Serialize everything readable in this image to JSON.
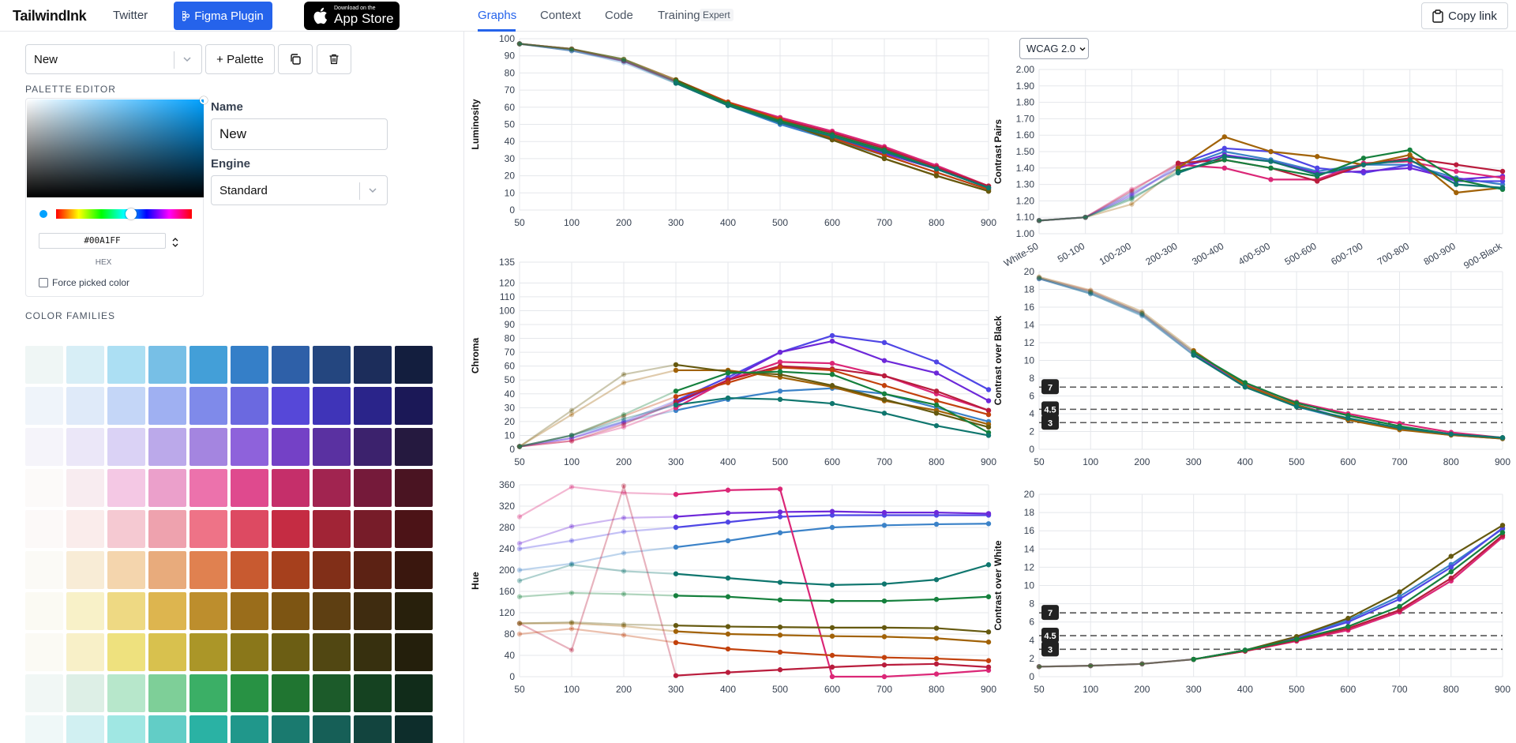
{
  "topbar": {
    "brand": "TailwindInk",
    "twitter": "Twitter",
    "figma": "Figma Plugin",
    "appstore_line1": "Download on the",
    "appstore_line2": "App Store"
  },
  "left": {
    "palette_select": "New",
    "add_palette": "+ Palette",
    "palette_editor_title": "PALETTE EDITOR",
    "hex_value": "#00A1FF",
    "hex_label": "HEX",
    "force_label": "Force picked color",
    "name_label": "Name",
    "name_value": "New",
    "engine_label": "Engine",
    "engine_value": "Standard",
    "color_families_title": "COLOR FAMILIES"
  },
  "tabs": {
    "items": [
      "Graphs",
      "Context",
      "Code",
      "Training"
    ],
    "badge": "Expert",
    "active": "Graphs",
    "copy_link": "Copy link"
  },
  "wcag": {
    "selected": "WCAG 2.0"
  },
  "icons": {
    "figma": "figma-icon",
    "apple": "apple-logo-icon",
    "duplicate": "duplicate-icon",
    "trash": "trash-icon",
    "chevron": "chevron-down-icon",
    "clipboard": "clipboard-icon",
    "updown": "up-down-chevron-icon"
  },
  "swatches": [
    [
      "#eff6f5",
      "#d7eef6",
      "#acdff3",
      "#77bfe6",
      "#439fd8",
      "#357fc8",
      "#2e60a8",
      "#24467f",
      "#1c2d5b",
      "#131e3e"
    ],
    [
      "#eff4fa",
      "#dfeaf9",
      "#c4d6f7",
      "#9fb0f2",
      "#7f8aea",
      "#6b69e0",
      "#5648d8",
      "#3f34b8",
      "#2a248a",
      "#1b1857"
    ],
    [
      "#f5f4fa",
      "#ebe7f8",
      "#dad2f5",
      "#bba9ea",
      "#a485e0",
      "#8e62db",
      "#7441c6",
      "#5a31a1",
      "#3c226d",
      "#25193f"
    ],
    [
      "#fcfaf9",
      "#f8ecf0",
      "#f4c8e4",
      "#eba0cb",
      "#ec72ac",
      "#df4a8e",
      "#c52f6a",
      "#a12450",
      "#751a3a",
      "#4a1422"
    ],
    [
      "#fcf9f8",
      "#faeceb",
      "#f5c9d2",
      "#eea2ae",
      "#ee7387",
      "#dd4a62",
      "#c52c43",
      "#a12436",
      "#771c29",
      "#4c1317"
    ],
    [
      "#fbfaf6",
      "#f8ecd6",
      "#f4d5ad",
      "#e8ab7c",
      "#e08150",
      "#c85a30",
      "#a6401d",
      "#812f18",
      "#5c2214",
      "#3a170e"
    ],
    [
      "#fbfaf3",
      "#f8f1c8",
      "#eed983",
      "#ddb54f",
      "#bd8e2d",
      "#9a6d1b",
      "#7d5513",
      "#5e3f12",
      "#3f2c10",
      "#28200c"
    ],
    [
      "#fbfaf4",
      "#f8f0c8",
      "#eee17e",
      "#d8c14e",
      "#ab9628",
      "#8a771a",
      "#6c5e14",
      "#514712",
      "#37300f",
      "#241f0c"
    ],
    [
      "#f1f7f5",
      "#ddefe6",
      "#b7e7cb",
      "#7ecf98",
      "#3baf66",
      "#289244",
      "#207531",
      "#1c5b2a",
      "#154221",
      "#112c1a"
    ],
    [
      "#eff8f8",
      "#d1f0f2",
      "#a0e7e3",
      "#62cdc6",
      "#2ab2a4",
      "#20978b",
      "#1a7a6f",
      "#165f57",
      "#12443e",
      "#0d2d2b"
    ]
  ],
  "chart_data": [
    {
      "type": "line",
      "name": "Luminosity",
      "ylabel": "Luminosity",
      "x": [
        "50",
        "100",
        "200",
        "300",
        "400",
        "500",
        "600",
        "700",
        "800",
        "900"
      ],
      "ylim": [
        0,
        100
      ],
      "yticks": [
        0,
        10,
        20,
        30,
        40,
        50,
        60,
        70,
        80,
        90,
        100
      ],
      "series": [
        {
          "color": "#3b82c8",
          "values": [
            97,
            93,
            86,
            74,
            61,
            50,
            41,
            32,
            22,
            12
          ]
        },
        {
          "color": "#4f46e5",
          "values": [
            97,
            93,
            87,
            75,
            62,
            51,
            42,
            33,
            24,
            13
          ]
        },
        {
          "color": "#6d28d9",
          "values": [
            97,
            94,
            87,
            75,
            62,
            51,
            42,
            33,
            24,
            13
          ]
        },
        {
          "color": "#db2777",
          "values": [
            97,
            94,
            87,
            75,
            63,
            54,
            46,
            37,
            26,
            14
          ]
        },
        {
          "color": "#b91c3c",
          "values": [
            97,
            94,
            87,
            75,
            63,
            53,
            45,
            36,
            25,
            14
          ]
        },
        {
          "color": "#c2410c",
          "values": [
            97,
            94,
            88,
            76,
            63,
            53,
            42,
            32,
            22,
            12
          ]
        },
        {
          "color": "#a16207",
          "values": [
            97,
            94,
            88,
            76,
            62,
            52,
            41,
            30,
            20,
            11
          ]
        },
        {
          "color": "#65590f",
          "values": [
            97,
            94,
            88,
            76,
            62,
            52,
            41,
            30,
            20,
            11
          ]
        },
        {
          "color": "#15803d",
          "values": [
            97,
            94,
            88,
            75,
            62,
            52,
            44,
            35,
            24,
            13
          ]
        },
        {
          "color": "#0f766e",
          "values": [
            97,
            93,
            87,
            74,
            61,
            51,
            43,
            34,
            24,
            13
          ]
        }
      ]
    },
    {
      "type": "line",
      "name": "Chroma",
      "ylabel": "Chroma",
      "x": [
        "50",
        "100",
        "200",
        "300",
        "400",
        "500",
        "600",
        "700",
        "800",
        "900"
      ],
      "ylim": [
        0,
        135
      ],
      "yticks": [
        0,
        10,
        20,
        30,
        40,
        50,
        60,
        70,
        80,
        90,
        100,
        110,
        120,
        135
      ],
      "series": [
        {
          "color": "#3b82c8",
          "values": [
            2,
            10,
            20,
            28,
            36,
            42,
            44,
            40,
            30,
            20
          ]
        },
        {
          "color": "#4f46e5",
          "values": [
            2,
            8,
            20,
            35,
            52,
            70,
            82,
            77,
            63,
            43
          ]
        },
        {
          "color": "#6d28d9",
          "values": [
            2,
            8,
            19,
            33,
            50,
            70,
            78,
            64,
            55,
            35
          ]
        },
        {
          "color": "#db2777",
          "values": [
            2,
            6,
            16,
            30,
            50,
            63,
            62,
            53,
            40,
            28
          ]
        },
        {
          "color": "#b91c3c",
          "values": [
            2,
            6,
            18,
            34,
            50,
            60,
            58,
            53,
            42,
            28
          ]
        },
        {
          "color": "#c2410c",
          "values": [
            2,
            10,
            24,
            38,
            48,
            59,
            57,
            46,
            35,
            25
          ]
        },
        {
          "color": "#a16207",
          "values": [
            2,
            25,
            48,
            57,
            57,
            52,
            45,
            35,
            28,
            18
          ]
        },
        {
          "color": "#65590f",
          "values": [
            2,
            28,
            54,
            61,
            56,
            54,
            46,
            36,
            26,
            16
          ]
        },
        {
          "color": "#15803d",
          "values": [
            2,
            10,
            25,
            42,
            55,
            56,
            54,
            40,
            32,
            12
          ]
        },
        {
          "color": "#0f766e",
          "values": [
            2,
            10,
            22,
            32,
            37,
            36,
            33,
            26,
            17,
            10
          ]
        }
      ]
    },
    {
      "type": "line",
      "name": "Hue",
      "ylabel": "Hue",
      "x": [
        "50",
        "100",
        "200",
        "300",
        "400",
        "500",
        "600",
        "700",
        "800",
        "900"
      ],
      "ylim": [
        0,
        360
      ],
      "yticks": [
        0,
        40,
        80,
        120,
        160,
        200,
        240,
        280,
        320,
        360
      ],
      "series": [
        {
          "color": "#3b82c8",
          "values": [
            200,
            212,
            232,
            243,
            255,
            270,
            280,
            284,
            286,
            287
          ]
        },
        {
          "color": "#4f46e5",
          "values": [
            240,
            255,
            272,
            280,
            290,
            300,
            303,
            303,
            303,
            303
          ]
        },
        {
          "color": "#6d28d9",
          "values": [
            250,
            282,
            298,
            300,
            307,
            309,
            310,
            308,
            308,
            306
          ]
        },
        {
          "color": "#db2777",
          "values": [
            300,
            356,
            345,
            342,
            350,
            352,
            0,
            0,
            5,
            12
          ]
        },
        {
          "color": "#b91c3c",
          "values": [
            100,
            50,
            358,
            2,
            8,
            13,
            18,
            22,
            24,
            18
          ]
        },
        {
          "color": "#c2410c",
          "values": [
            80,
            90,
            78,
            64,
            52,
            46,
            40,
            36,
            34,
            30
          ]
        },
        {
          "color": "#a16207",
          "values": [
            100,
            100,
            95,
            85,
            80,
            78,
            76,
            75,
            72,
            65
          ]
        },
        {
          "color": "#65590f",
          "values": [
            100,
            102,
            98,
            96,
            94,
            93,
            92,
            92,
            91,
            84
          ]
        },
        {
          "color": "#15803d",
          "values": [
            150,
            157,
            155,
            152,
            150,
            144,
            142,
            142,
            145,
            150
          ]
        },
        {
          "color": "#0f766e",
          "values": [
            180,
            210,
            198,
            193,
            185,
            177,
            172,
            174,
            182,
            210
          ]
        }
      ]
    },
    {
      "type": "line",
      "name": "Contrast Pairs",
      "ylabel": "Contrast Pairs",
      "x": [
        "White-50",
        "50-100",
        "100-200",
        "200-300",
        "300-400",
        "400-500",
        "500-600",
        "600-700",
        "700-800",
        "800-900",
        "900-Black"
      ],
      "ylim": [
        1.0,
        2.0
      ],
      "yticks": [
        "1.00",
        "1.10",
        "1.20",
        "1.30",
        "1.40",
        "1.50",
        "1.60",
        "1.70",
        "1.80",
        "1.90",
        "2.00"
      ],
      "series": [
        {
          "color": "#3b82c8",
          "values": [
            1.08,
            1.1,
            1.25,
            1.4,
            1.5,
            1.45,
            1.38,
            1.42,
            1.42,
            1.34,
            1.3
          ]
        },
        {
          "color": "#4f46e5",
          "values": [
            1.08,
            1.1,
            1.23,
            1.42,
            1.52,
            1.5,
            1.4,
            1.37,
            1.42,
            1.32,
            1.32
          ]
        },
        {
          "color": "#6d28d9",
          "values": [
            1.08,
            1.1,
            1.24,
            1.4,
            1.48,
            1.44,
            1.37,
            1.38,
            1.4,
            1.33,
            1.35
          ]
        },
        {
          "color": "#db2777",
          "values": [
            1.08,
            1.1,
            1.27,
            1.42,
            1.4,
            1.33,
            1.33,
            1.43,
            1.44,
            1.38,
            1.34
          ]
        },
        {
          "color": "#b91c3c",
          "values": [
            1.08,
            1.1,
            1.26,
            1.43,
            1.45,
            1.4,
            1.32,
            1.42,
            1.46,
            1.42,
            1.38
          ]
        },
        {
          "color": "#a16207",
          "values": [
            1.08,
            1.1,
            1.18,
            1.4,
            1.59,
            1.5,
            1.47,
            1.42,
            1.48,
            1.25,
            1.28
          ]
        },
        {
          "color": "#15803d",
          "values": [
            1.08,
            1.1,
            1.21,
            1.38,
            1.45,
            1.4,
            1.35,
            1.46,
            1.51,
            1.33,
            1.27
          ]
        },
        {
          "color": "#0f766e",
          "values": [
            1.08,
            1.1,
            1.22,
            1.37,
            1.47,
            1.44,
            1.36,
            1.42,
            1.45,
            1.3,
            1.28
          ]
        }
      ]
    },
    {
      "type": "line",
      "name": "Contrast over Black",
      "ylabel": "Contrast over Black",
      "x": [
        "50",
        "100",
        "200",
        "300",
        "400",
        "500",
        "600",
        "700",
        "800",
        "900"
      ],
      "ylim": [
        0,
        20
      ],
      "yticks": [
        0,
        2,
        4,
        6,
        8,
        10,
        12,
        14,
        16,
        18,
        20
      ],
      "thresholds": [
        "7",
        "4.5",
        "3"
      ],
      "threshold_values": [
        7,
        4.5,
        3
      ],
      "series": [
        {
          "color": "#3b82c8",
          "values": [
            19.2,
            17.5,
            15.0,
            10.6,
            7.1,
            4.8,
            3.3,
            2.3,
            1.6,
            1.2
          ]
        },
        {
          "color": "#4f46e5",
          "values": [
            19.2,
            17.6,
            15.2,
            10.7,
            7.2,
            5.0,
            3.4,
            2.4,
            1.7,
            1.3
          ]
        },
        {
          "color": "#db2777",
          "values": [
            19.3,
            17.8,
            15.3,
            10.9,
            7.3,
            5.3,
            4.0,
            2.9,
            1.9,
            1.3
          ]
        },
        {
          "color": "#a16207",
          "values": [
            19.4,
            17.9,
            15.5,
            11.1,
            7.2,
            5.0,
            3.3,
            2.2,
            1.6,
            1.2
          ]
        },
        {
          "color": "#15803d",
          "values": [
            19.3,
            17.7,
            15.3,
            10.9,
            7.5,
            5.2,
            3.8,
            2.6,
            1.7,
            1.3
          ]
        },
        {
          "color": "#0f766e",
          "values": [
            19.2,
            17.5,
            15.1,
            10.6,
            7.0,
            4.8,
            3.5,
            2.4,
            1.7,
            1.3
          ]
        }
      ]
    },
    {
      "type": "line",
      "name": "Contrast over White",
      "ylabel": "Contrast over White",
      "x": [
        "50",
        "100",
        "200",
        "300",
        "400",
        "500",
        "600",
        "700",
        "800",
        "900"
      ],
      "ylim": [
        0,
        20
      ],
      "yticks": [
        0,
        2,
        4,
        6,
        8,
        10,
        12,
        14,
        16,
        18,
        20
      ],
      "thresholds": [
        "7",
        "4.5",
        "3"
      ],
      "threshold_values": [
        7,
        4.5,
        3
      ],
      "series": [
        {
          "color": "#3b82c8",
          "values": [
            1.1,
            1.2,
            1.4,
            1.9,
            2.9,
            4.3,
            6.2,
            8.8,
            12.3,
            16.2
          ]
        },
        {
          "color": "#4f46e5",
          "values": [
            1.1,
            1.2,
            1.4,
            1.9,
            2.9,
            4.2,
            6.0,
            8.5,
            12.0,
            16.3
          ]
        },
        {
          "color": "#db2777",
          "values": [
            1.1,
            1.2,
            1.4,
            1.9,
            2.8,
            3.9,
            5.1,
            7.1,
            10.5,
            15.3
          ]
        },
        {
          "color": "#b91c3c",
          "values": [
            1.1,
            1.2,
            1.4,
            1.9,
            2.8,
            4.0,
            5.3,
            7.3,
            10.8,
            15.5
          ]
        },
        {
          "color": "#65590f",
          "values": [
            1.1,
            1.2,
            1.4,
            1.9,
            2.9,
            4.4,
            6.4,
            9.3,
            13.2,
            16.6
          ]
        },
        {
          "color": "#15803d",
          "values": [
            1.1,
            1.2,
            1.4,
            1.9,
            2.9,
            4.1,
            5.5,
            7.7,
            11.5,
            15.8
          ]
        }
      ]
    }
  ]
}
